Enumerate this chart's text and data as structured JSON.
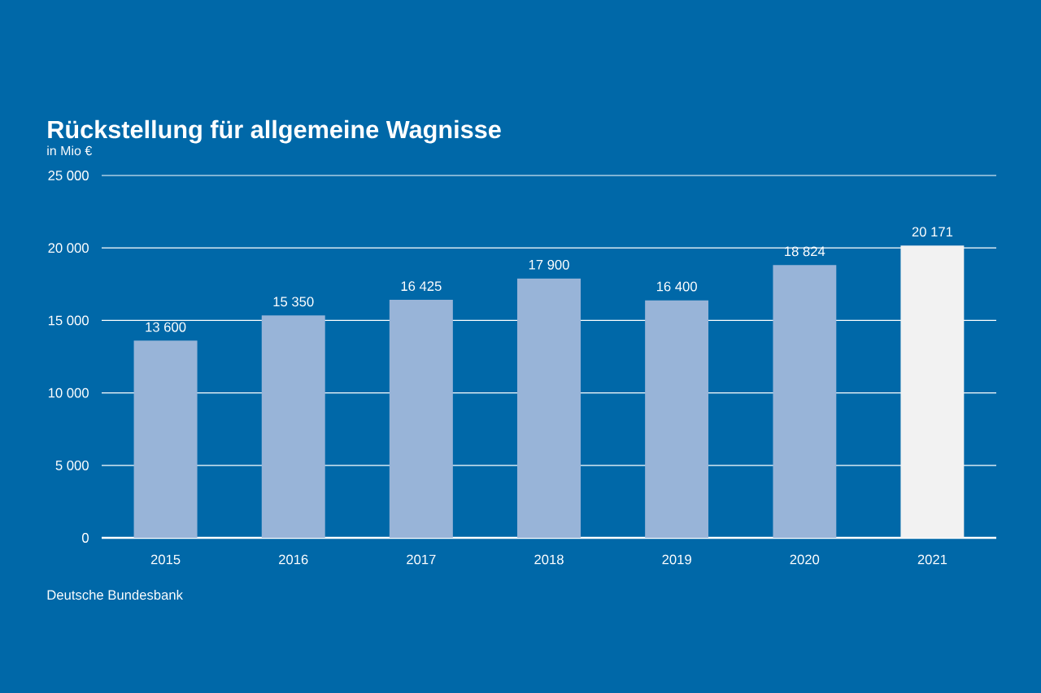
{
  "chart_data": {
    "type": "bar",
    "title": "Rückstellung für allgemeine Wagnisse",
    "subtitle": "in Mio €",
    "categories": [
      "2015",
      "2016",
      "2017",
      "2018",
      "2019",
      "2020",
      "2021"
    ],
    "values": [
      13600,
      15350,
      16425,
      17900,
      16400,
      18824,
      20171
    ],
    "value_labels": [
      "13 600",
      "15 350",
      "16 425",
      "17 900",
      "16 400",
      "18 824",
      "20 171"
    ],
    "colors": [
      "#98b4d8",
      "#98b4d8",
      "#98b4d8",
      "#98b4d8",
      "#98b4d8",
      "#98b4d8",
      "#f2f2f2"
    ],
    "ylim": [
      0,
      25000
    ],
    "yticks": [
      {
        "value": 0,
        "label": "0"
      },
      {
        "value": 5000,
        "label": "5 000"
      },
      {
        "value": 10000,
        "label": "10 000"
      },
      {
        "value": 15000,
        "label": "15 000"
      },
      {
        "value": 20000,
        "label": "20 000"
      },
      {
        "value": 25000,
        "label": "25 000"
      }
    ],
    "grid": "y",
    "annotations": [
      "Deutsche Bundesbank"
    ]
  }
}
